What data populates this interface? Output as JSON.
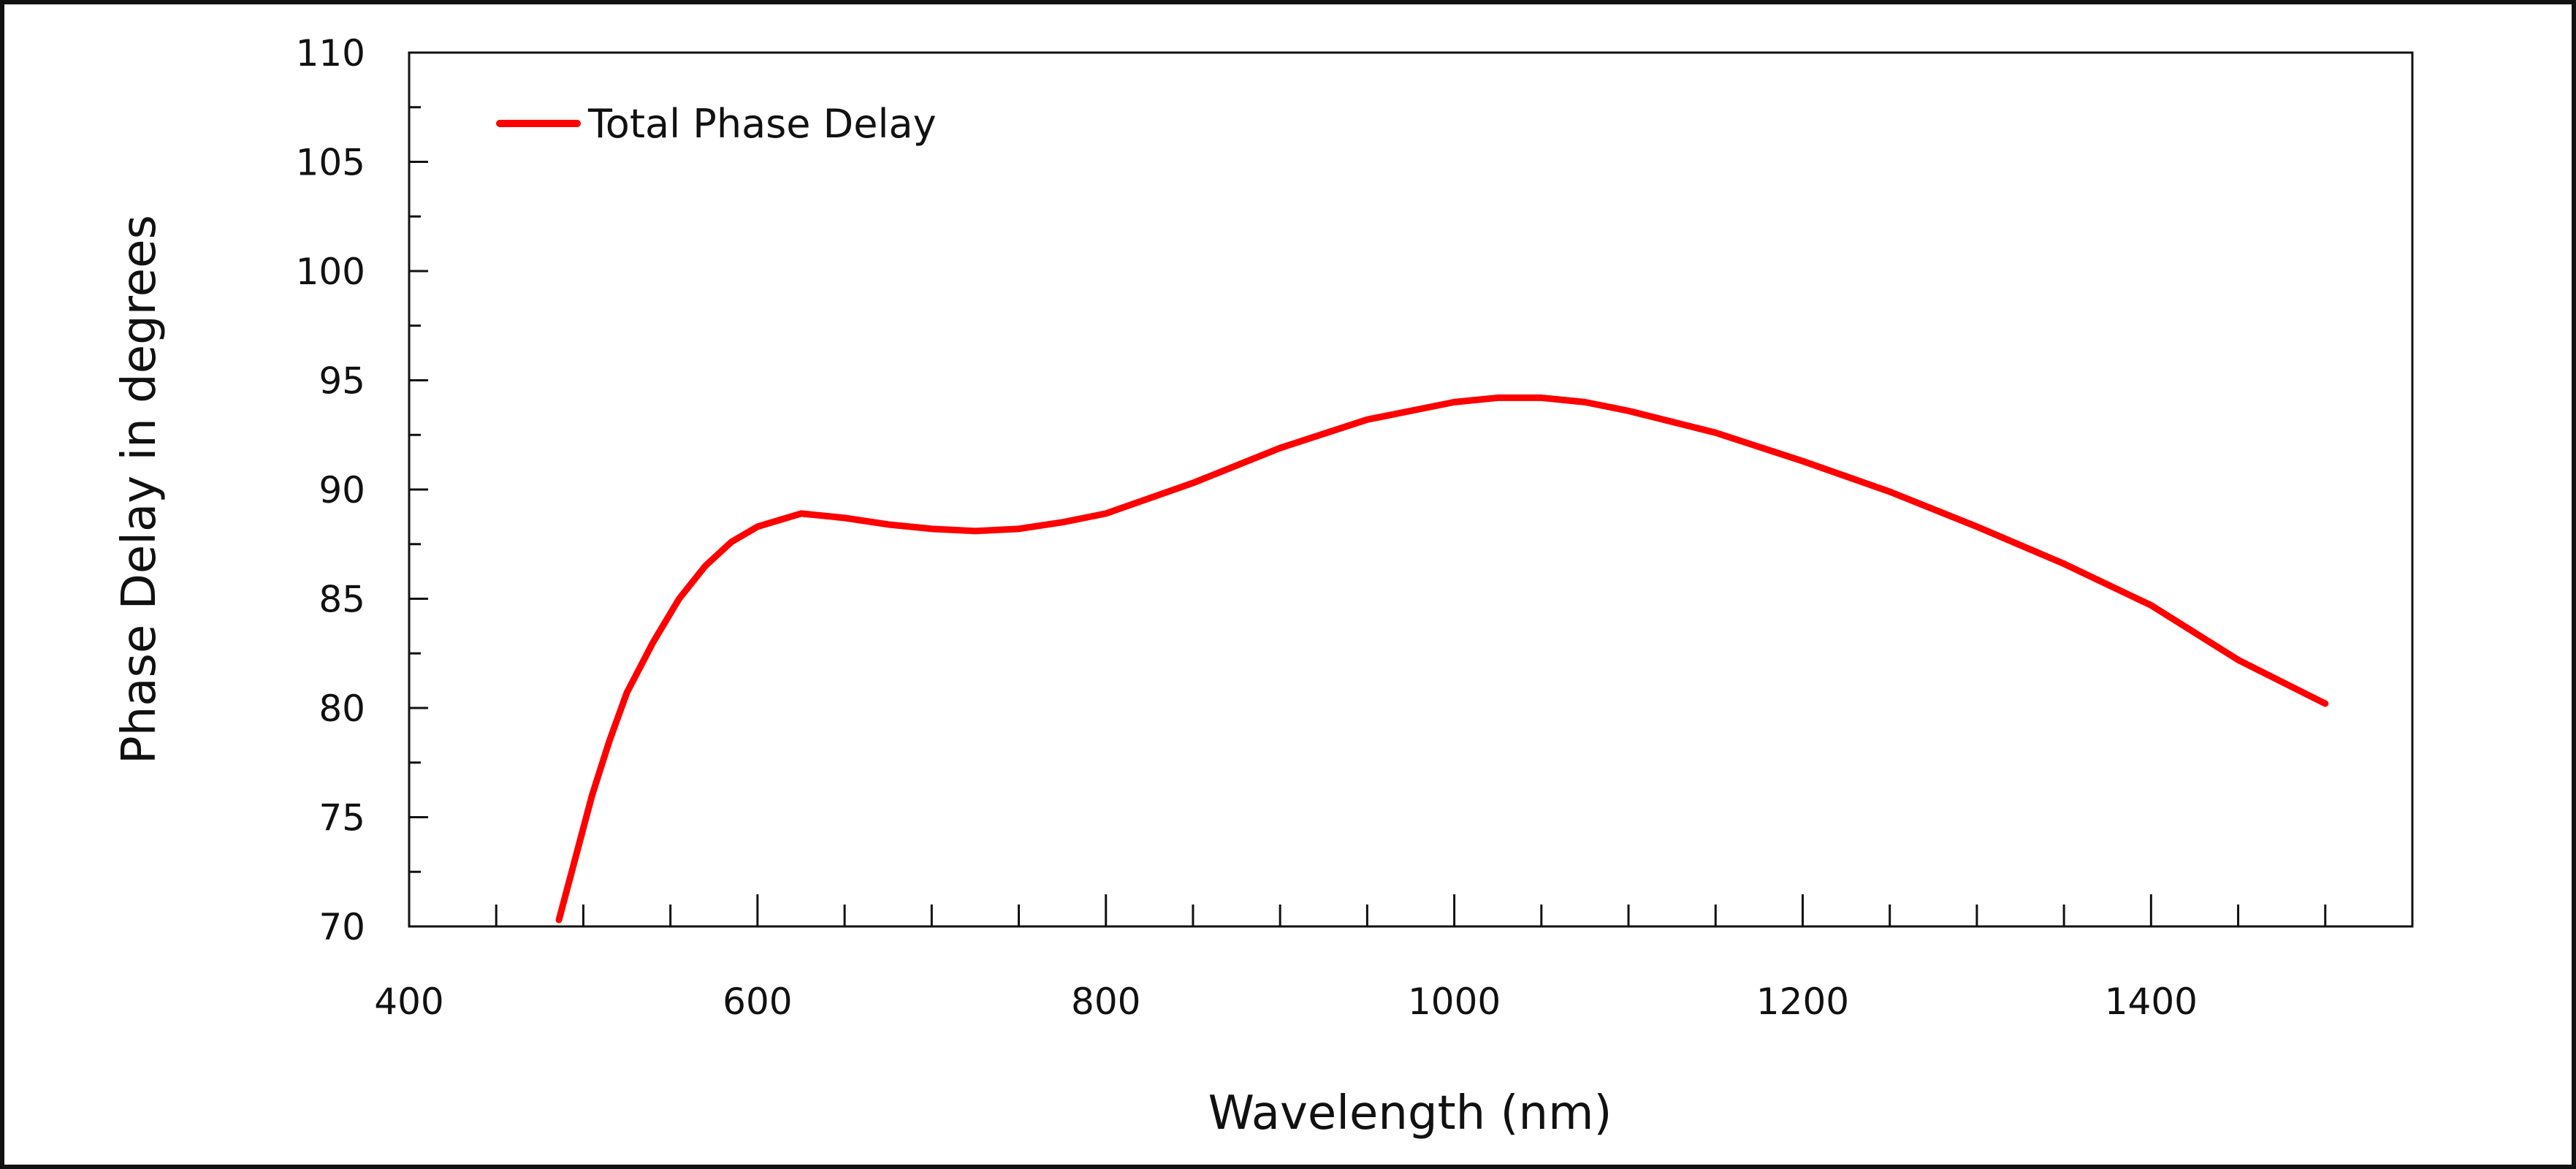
{
  "chart_data": {
    "type": "line",
    "title": "",
    "xlabel": "Wavelength (nm)",
    "ylabel": "Phase Delay in degrees",
    "xlim": [
      400,
      1550
    ],
    "ylim": [
      70,
      110
    ],
    "x_ticks": [
      400,
      600,
      800,
      1000,
      1200,
      1400
    ],
    "x_tick_labels": [
      "400",
      "600",
      "800",
      "1000",
      "1200",
      "1400"
    ],
    "y_ticks": [
      70,
      75,
      80,
      85,
      90,
      95,
      100,
      105,
      110
    ],
    "y_tick_labels": [
      "70",
      "75",
      "80",
      "85",
      "90",
      "95",
      "100",
      "105",
      "110"
    ],
    "x_minor_step": 50,
    "y_minor_step": 2.5,
    "grid": false,
    "legend_position": "top-left",
    "series": [
      {
        "name": "Total Phase Delay",
        "color": "#ff0000",
        "x": [
          486,
          495,
          505,
          515,
          525,
          540,
          555,
          570,
          585,
          600,
          625,
          650,
          675,
          700,
          725,
          750,
          775,
          800,
          850,
          900,
          950,
          1000,
          1025,
          1050,
          1075,
          1100,
          1150,
          1200,
          1250,
          1300,
          1350,
          1400,
          1450,
          1500
        ],
        "y": [
          70.3,
          73.0,
          76.0,
          78.5,
          80.7,
          83.0,
          85.0,
          86.5,
          87.6,
          88.3,
          88.9,
          88.7,
          88.4,
          88.2,
          88.1,
          88.2,
          88.5,
          88.9,
          90.3,
          91.9,
          93.2,
          94.0,
          94.2,
          94.2,
          94.0,
          93.6,
          92.6,
          91.3,
          89.9,
          88.3,
          86.6,
          84.7,
          82.2,
          80.2
        ]
      }
    ]
  }
}
